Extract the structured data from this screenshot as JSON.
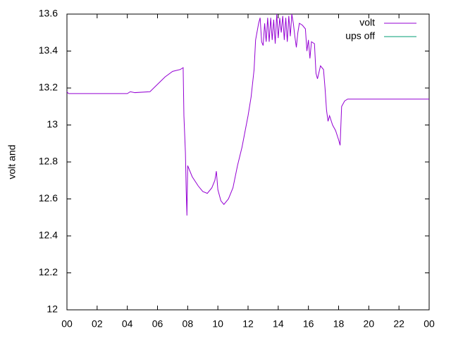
{
  "chart_data": {
    "type": "line",
    "ylabel": "volt and",
    "xlim": [
      0,
      24
    ],
    "xticks": [
      {
        "value": 0,
        "label": "00"
      },
      {
        "value": 2,
        "label": "02"
      },
      {
        "value": 4,
        "label": "04"
      },
      {
        "value": 6,
        "label": "06"
      },
      {
        "value": 8,
        "label": "08"
      },
      10,
      12,
      14,
      16,
      18,
      20,
      22,
      {
        "value": 24,
        "label": "00"
      }
    ],
    "ylim": [
      12,
      13.6
    ],
    "yticks": [
      12,
      12.2,
      12.4,
      12.6,
      12.8,
      13,
      13.2,
      13.4,
      13.6
    ],
    "legend": "top-right",
    "x": [
      0,
      0.1,
      4.0,
      4.2,
      4.5,
      5.5,
      6.0,
      6.5,
      7.0,
      7.5,
      7.7,
      7.75,
      7.85,
      7.9,
      7.95,
      8.0,
      8.3,
      8.7,
      9.0,
      9.3,
      9.6,
      9.8,
      9.9,
      10.0,
      10.2,
      10.4,
      10.7,
      11.0,
      11.3,
      11.6,
      12.0,
      12.2,
      12.4,
      12.5,
      12.7,
      12.8,
      12.9,
      13.0,
      13.1,
      13.2,
      13.3,
      13.4,
      13.5,
      13.6,
      13.7,
      13.8,
      13.9,
      14.0,
      14.1,
      14.2,
      14.3,
      14.4,
      14.5,
      14.6,
      14.7,
      14.8,
      14.9,
      15.0,
      15.1,
      15.2,
      15.3,
      15.4,
      15.6,
      15.8,
      15.9,
      16.0,
      16.1,
      16.2,
      16.4,
      16.5,
      16.6,
      16.8,
      17.0,
      17.1,
      17.2,
      17.3,
      17.4,
      17.6,
      17.8,
      18.0,
      18.1,
      18.2,
      18.4,
      18.6,
      20.0,
      21.0,
      24.0
    ],
    "series": [
      {
        "name": "volt",
        "color": "#9400d3",
        "values": [
          13.18,
          13.17,
          13.17,
          13.18,
          13.175,
          13.18,
          13.22,
          13.26,
          13.29,
          13.3,
          13.31,
          13.05,
          12.85,
          12.65,
          12.51,
          12.78,
          12.72,
          12.67,
          12.64,
          12.63,
          12.66,
          12.7,
          12.75,
          12.65,
          12.59,
          12.57,
          12.6,
          12.66,
          12.78,
          12.88,
          13.05,
          13.15,
          13.3,
          13.46,
          13.55,
          13.58,
          13.45,
          13.43,
          13.55,
          13.45,
          13.58,
          13.45,
          13.58,
          13.46,
          13.57,
          13.44,
          13.6,
          13.47,
          13.58,
          13.5,
          13.59,
          13.46,
          13.58,
          13.45,
          13.59,
          13.48,
          13.6,
          13.55,
          13.48,
          13.42,
          13.5,
          13.55,
          13.54,
          13.52,
          13.4,
          13.46,
          13.36,
          13.45,
          13.44,
          13.28,
          13.25,
          13.32,
          13.3,
          13.2,
          13.08,
          13.02,
          13.05,
          13.0,
          12.97,
          12.92,
          12.89,
          13.1,
          13.13,
          13.14,
          13.14,
          13.14,
          13.14
        ]
      },
      {
        "name": "ups off",
        "color": "#009e73",
        "values": [
          null,
          null,
          null,
          null,
          null,
          null,
          null,
          null,
          null,
          null,
          null,
          null,
          null,
          null,
          null,
          null,
          null,
          null,
          null,
          null,
          null,
          null,
          null,
          null,
          null,
          null,
          null,
          null,
          null,
          null,
          null,
          null,
          null,
          null,
          null,
          null,
          null,
          null,
          null,
          null,
          null,
          null,
          null,
          null,
          null,
          null,
          null,
          null,
          null,
          null,
          null,
          null,
          null,
          null,
          null,
          null,
          null,
          null,
          null,
          null,
          null,
          null,
          null,
          null,
          null,
          null,
          null,
          null,
          null,
          null,
          null,
          null,
          null,
          null,
          null,
          null,
          null,
          null,
          null,
          null,
          null,
          null,
          null,
          null,
          null,
          null,
          null
        ]
      }
    ]
  }
}
